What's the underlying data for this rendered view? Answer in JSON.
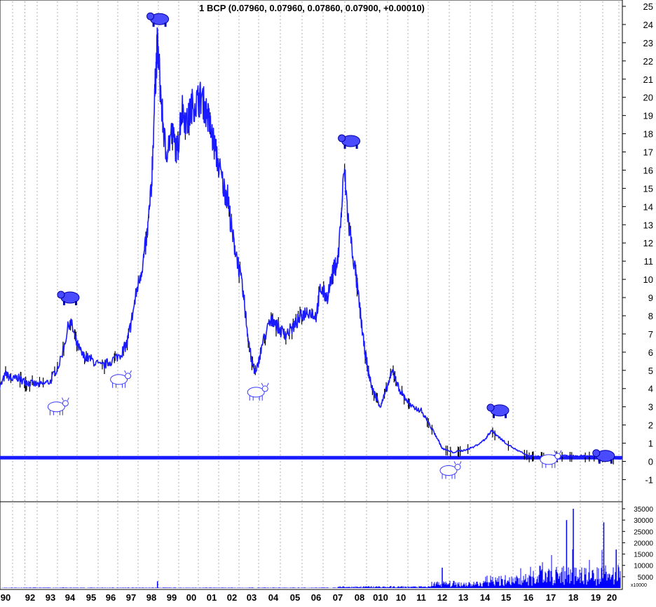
{
  "chart_data": [
    {
      "type": "line",
      "title": "1 BCP (0.07960, 0.07960, 0.07860, 0.07900, +0.00010)",
      "ylim": [
        -2,
        25
      ],
      "y_ticks": [
        "25",
        "24",
        "23",
        "22",
        "21",
        "20",
        "19",
        "18",
        "17",
        "16",
        "15",
        "14",
        "13",
        "12",
        "11",
        "10",
        "9",
        "8",
        "7",
        "6",
        "5",
        "4",
        "3",
        "2",
        "1",
        "0",
        "-1"
      ],
      "grid": "vertical dotted",
      "x_ticks": [
        "90",
        "92",
        "93",
        "94",
        "95",
        "96",
        "97",
        "98",
        "99",
        "00",
        "01",
        "02",
        "03",
        "04",
        "05",
        "06",
        "07",
        "08",
        "010",
        "10",
        "11",
        "12",
        "13",
        "14",
        "15",
        "16",
        "17",
        "18",
        "19",
        "20"
      ],
      "series": [
        {
          "values": [
            [
              1989.7,
              3.8
            ],
            [
              1990.0,
              4.8
            ],
            [
              1990.5,
              4.5
            ],
            [
              1991.0,
              4.6
            ],
            [
              1991.5,
              4.4
            ],
            [
              1992.0,
              4.3
            ],
            [
              1992.5,
              4.2
            ],
            [
              1993.0,
              4.4
            ],
            [
              1993.5,
              5.5
            ],
            [
              1994.0,
              7.8
            ],
            [
              1994.3,
              6.5
            ],
            [
              1994.6,
              5.8
            ],
            [
              1995.0,
              5.6
            ],
            [
              1995.5,
              5.2
            ],
            [
              1996.0,
              5.5
            ],
            [
              1996.5,
              5.9
            ],
            [
              1996.8,
              6.5
            ],
            [
              1997.0,
              7.6
            ],
            [
              1997.3,
              9.5
            ],
            [
              1997.6,
              11.0
            ],
            [
              1997.8,
              12.5
            ],
            [
              1998.0,
              15.0
            ],
            [
              1998.2,
              21.0
            ],
            [
              1998.3,
              23.0
            ],
            [
              1998.5,
              19.5
            ],
            [
              1998.7,
              17.0
            ],
            [
              1999.0,
              18.0
            ],
            [
              1999.3,
              17.0
            ],
            [
              1999.5,
              19.5
            ],
            [
              1999.8,
              18.5
            ],
            [
              2000.0,
              19.5
            ],
            [
              2000.3,
              19.8
            ],
            [
              2000.5,
              20.0
            ],
            [
              2000.8,
              19.0
            ],
            [
              2001.0,
              18.0
            ],
            [
              2001.3,
              16.5
            ],
            [
              2001.6,
              15.0
            ],
            [
              2001.8,
              14.5
            ],
            [
              2002.0,
              12.5
            ],
            [
              2002.3,
              11.0
            ],
            [
              2002.6,
              9.0
            ],
            [
              2002.8,
              7.0
            ],
            [
              2003.0,
              5.5
            ],
            [
              2003.2,
              4.8
            ],
            [
              2003.5,
              6.5
            ],
            [
              2003.8,
              7.5
            ],
            [
              2004.0,
              7.8
            ],
            [
              2004.3,
              7.2
            ],
            [
              2004.6,
              7.0
            ],
            [
              2005.0,
              7.5
            ],
            [
              2005.3,
              8.0
            ],
            [
              2005.6,
              8.3
            ],
            [
              2006.0,
              8.0
            ],
            [
              2006.2,
              9.5
            ],
            [
              2006.5,
              9.0
            ],
            [
              2006.8,
              10.5
            ],
            [
              2007.0,
              11.0
            ],
            [
              2007.3,
              16.0
            ],
            [
              2007.5,
              13.0
            ],
            [
              2007.8,
              10.5
            ],
            [
              2008.0,
              8.5
            ],
            [
              2008.2,
              6.5
            ],
            [
              2008.4,
              5.0
            ],
            [
              2008.6,
              4.0
            ],
            [
              2008.8,
              3.5
            ],
            [
              2009.0,
              3.0
            ],
            [
              2009.3,
              4.0
            ],
            [
              2009.6,
              5.0
            ],
            [
              2009.9,
              4.0
            ],
            [
              2010.2,
              3.5
            ],
            [
              2010.5,
              3.0
            ],
            [
              2011.0,
              2.8
            ],
            [
              2011.4,
              2.0
            ],
            [
              2011.8,
              1.2
            ],
            [
              2012.0,
              0.7
            ],
            [
              2012.5,
              0.5
            ],
            [
              2013.0,
              0.6
            ],
            [
              2013.5,
              0.8
            ],
            [
              2014.0,
              1.2
            ],
            [
              2014.3,
              1.7
            ],
            [
              2014.6,
              1.4
            ],
            [
              2015.0,
              1.0
            ],
            [
              2015.5,
              0.6
            ],
            [
              2016.0,
              0.3
            ],
            [
              2016.5,
              0.25
            ],
            [
              2017.0,
              0.3
            ],
            [
              2017.5,
              0.3
            ],
            [
              2018.0,
              0.3
            ],
            [
              2018.5,
              0.3
            ],
            [
              2019.0,
              0.3
            ],
            [
              2019.5,
              0.25
            ],
            [
              2020.0,
              0.2
            ],
            [
              2020.5,
              0.15
            ]
          ]
        }
      ],
      "reference_line": 0.2,
      "markers": [
        {
          "type": "bull",
          "x": 1993.3,
          "y": 3.0
        },
        {
          "type": "bear",
          "x": 1994.0,
          "y": 9.0
        },
        {
          "type": "bull",
          "x": 1996.4,
          "y": 4.5
        },
        {
          "type": "bear",
          "x": 1998.4,
          "y": 24.3
        },
        {
          "type": "bull",
          "x": 2003.2,
          "y": 3.8
        },
        {
          "type": "bear",
          "x": 2007.6,
          "y": 17.6
        },
        {
          "type": "bull",
          "x": 2012.3,
          "y": -0.5
        },
        {
          "type": "bear",
          "x": 2014.7,
          "y": 2.8
        },
        {
          "type": "bull",
          "x": 2016.9,
          "y": 0.1
        },
        {
          "type": "bear",
          "x": 2019.6,
          "y": 0.3
        }
      ],
      "colors": {
        "line": "#1a1aff",
        "line_dark": "#000000",
        "reference": "#1a1aff",
        "grid": "#b0b0b0"
      }
    },
    {
      "type": "bar",
      "ylabel": "x10000",
      "ylim": [
        0,
        36000
      ],
      "y_ticks": [
        "35000",
        "30000",
        "25000",
        "20000",
        "15000",
        "10000",
        "5000"
      ],
      "notable_spikes": [
        {
          "x": 2017.7,
          "value": 30000
        },
        {
          "x": 2018.0,
          "value": 35000
        },
        {
          "x": 2019.5,
          "value": 29000
        },
        {
          "x": 2020.2,
          "value": 17000
        },
        {
          "x": 2012.0,
          "value": 9000
        },
        {
          "x": 1998.3,
          "value": 3000
        }
      ],
      "colors": {
        "bar": "#0000ff"
      }
    }
  ]
}
